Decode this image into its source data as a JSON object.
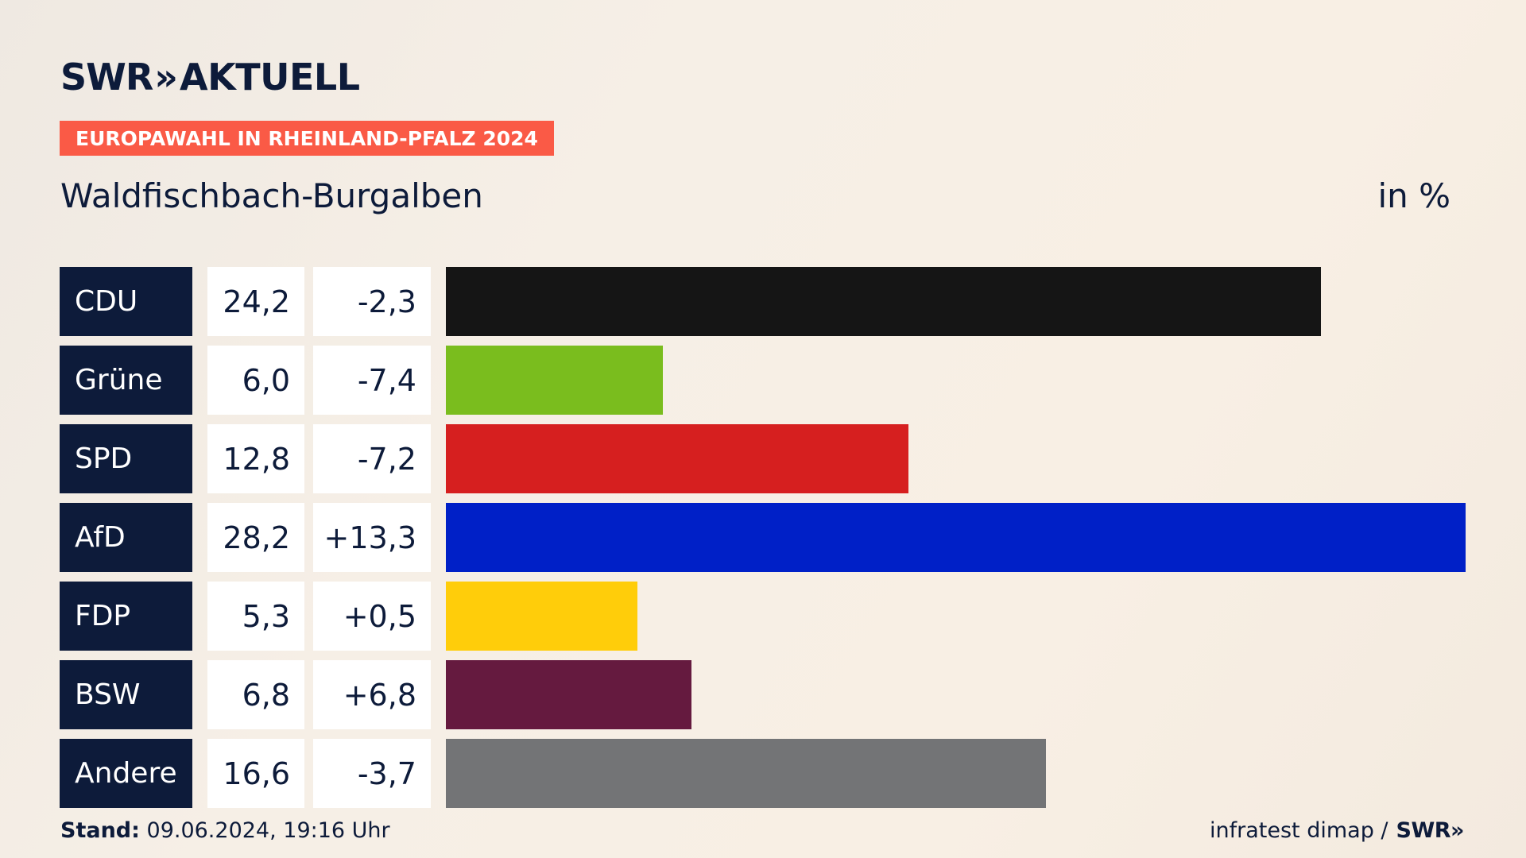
{
  "header": {
    "logo_swr": "SWR",
    "logo_arrows": "»",
    "logo_aktuell": "AKTUELL",
    "kicker": "EUROPAWAHL IN RHEINLAND-PFALZ 2024",
    "region": "Waldfischbach-Burgalben",
    "unit": "in %"
  },
  "chart_data": {
    "type": "bar",
    "categories": [
      "CDU",
      "Grüne",
      "SPD",
      "AfD",
      "FDP",
      "BSW",
      "Andere"
    ],
    "values": [
      24.2,
      6.0,
      12.8,
      28.2,
      5.3,
      6.8,
      16.6
    ],
    "value_labels": [
      "24,2",
      "6,0",
      "12,8",
      "28,2",
      "5,3",
      "6,8",
      "16,6"
    ],
    "diff_labels": [
      "-2,3",
      "-7,4",
      "-7,2",
      "+13,3",
      "+0,5",
      "+6,8",
      "-3,7"
    ],
    "colors": [
      "#151515",
      "#7abd1e",
      "#d61f1f",
      "#0020c7",
      "#ffcd0a",
      "#651a3f",
      "#737476"
    ],
    "xlim": [
      0,
      28.2
    ]
  },
  "footer": {
    "stand_label": "Stand:",
    "stand_value": "09.06.2024, 19:16 Uhr",
    "source": "infratest dimap /",
    "source_logo": "SWR»"
  }
}
